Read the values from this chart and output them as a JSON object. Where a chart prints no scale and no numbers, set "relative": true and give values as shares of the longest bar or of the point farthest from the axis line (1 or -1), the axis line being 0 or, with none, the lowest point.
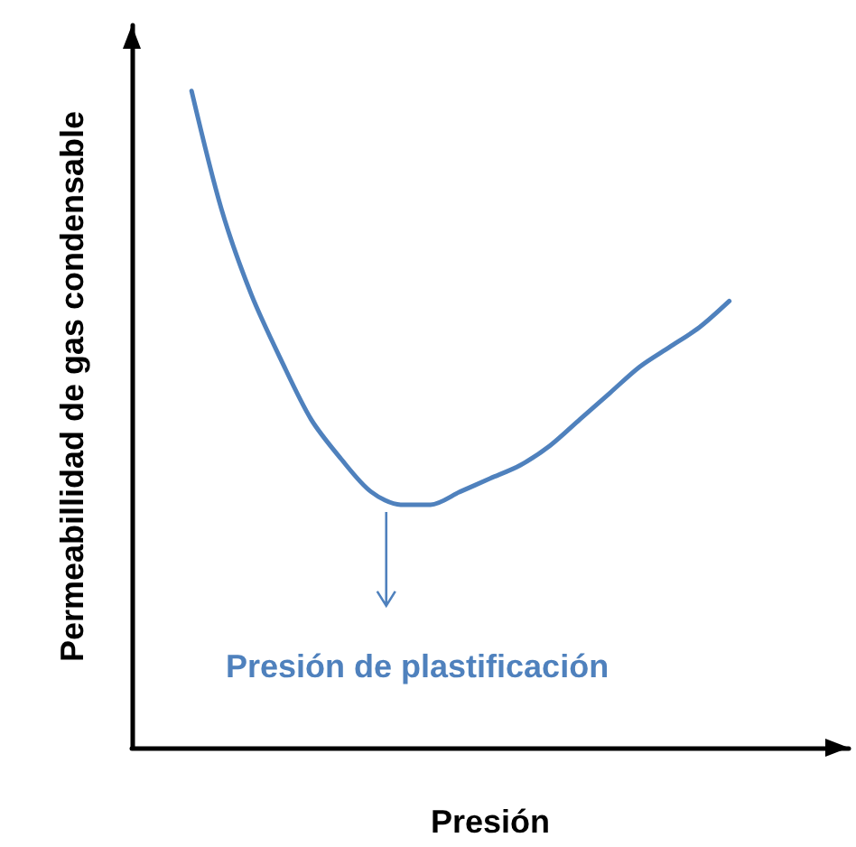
{
  "chart_data": {
    "type": "line",
    "relative": true,
    "xlabel": "Presión",
    "ylabel": "Permeabillidad de gas condensable",
    "categories": [
      null,
      null,
      null,
      null,
      null,
      null,
      null,
      null,
      null,
      null,
      null,
      null,
      null,
      null,
      null,
      null,
      null,
      null,
      null,
      null,
      null,
      null,
      null,
      null,
      null
    ],
    "series": [
      {
        "color": "#4f81bd",
        "values": [
          null,
          null,
          1,
          0.82,
          0.69,
          0.59,
          0.5,
          0.44,
          0.39,
          0.37,
          0.37,
          0.39,
          0.41,
          0.43,
          0.46,
          0.5,
          0.54,
          0.58,
          0.61,
          0.64,
          0.68,
          null,
          null,
          null,
          null
        ]
      }
    ],
    "annotations": [
      "Presión de plastificación"
    ]
  }
}
